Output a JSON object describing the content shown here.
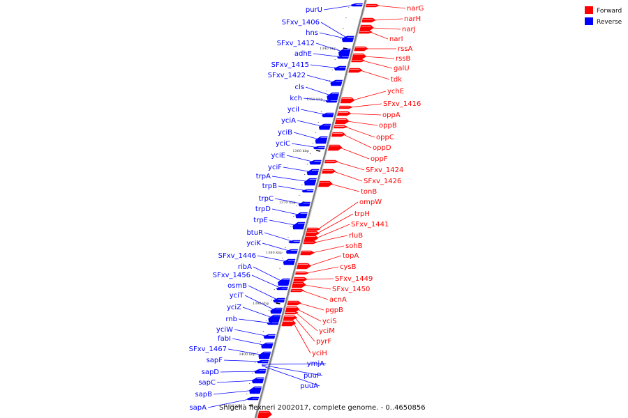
{
  "caption": "Shigella flexneri 2002017, complete genome. - 0..4650856",
  "legend": [
    {
      "label": "Forward",
      "color": "#ff0000"
    },
    {
      "label": "Reverse",
      "color": "#0000ff"
    }
  ],
  "colors": {
    "forward": "#ff0000",
    "reverse": "#0000ff",
    "axis": "#808080"
  },
  "scale_ticks": [
    "1340 kbp",
    "1350 kbp",
    "1360 kbp",
    "1370 kbp",
    "1380 kbp",
    "1390 kbp",
    "1400 kbp",
    "1410 kbp"
  ],
  "forward_genes": [
    "narG",
    "narH",
    "narJ",
    "narI",
    "rssA",
    "rssB",
    "galU",
    "tdk",
    "ychE",
    "SFxv_1416",
    "oppA",
    "oppB",
    "oppC",
    "oppD",
    "oppF",
    "SFxv_1424",
    "SFxv_1426",
    "tonB",
    "ompW",
    "trpH",
    "SFxv_1441",
    "rluB",
    "sohB",
    "topA",
    "cysB",
    "SFxv_1449",
    "SFxv_1450",
    "acnA",
    "pgpB",
    "yciS",
    "yciM",
    "pyrF",
    "yciH"
  ],
  "reverse_genes": [
    "purU",
    "SFxv_1406",
    "hns",
    "SFxv_1412",
    "adhE",
    "SFxv_1415",
    "SFxv_1422",
    "cls",
    "kch",
    "yciI",
    "yciA",
    "yciB",
    "yciC",
    "yciE",
    "yciF",
    "trpA",
    "trpB",
    "trpC",
    "trpD",
    "trpE",
    "btuR",
    "yciK",
    "SFxv_1446",
    "ribA",
    "SFxv_1456",
    "osmB",
    "yciT",
    "yciZ",
    "rnb",
    "yciW",
    "fabI",
    "SFxv_1467",
    "sapF",
    "sapD",
    "sapC",
    "sapB",
    "sapA",
    "ymjA",
    "puuP",
    "puuA"
  ]
}
